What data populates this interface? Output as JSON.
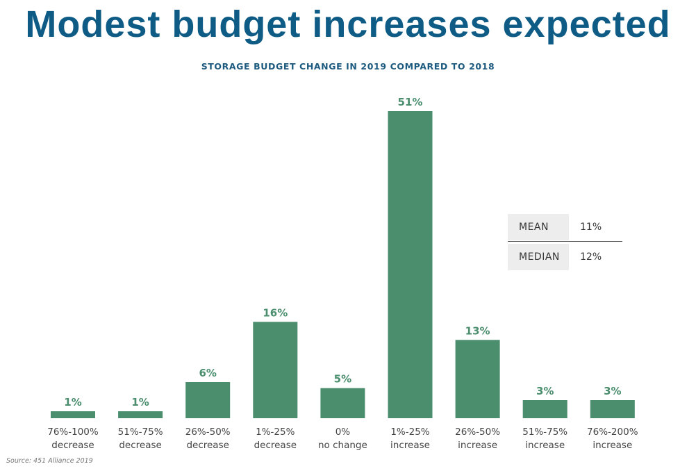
{
  "title": "Modest budget increases expected",
  "chart_data": {
    "type": "bar",
    "title": "STORAGE BUDGET CHANGE IN 2019 COMPARED TO 2018",
    "categories": [
      [
        "76%-100%",
        "decrease"
      ],
      [
        "51%-75%",
        "decrease"
      ],
      [
        "26%-50%",
        "decrease"
      ],
      [
        "1%-25%",
        "decrease"
      ],
      [
        "0%",
        "no change"
      ],
      [
        "1%-25%",
        "increase"
      ],
      [
        "26%-50%",
        "increase"
      ],
      [
        "51%-75%",
        "increase"
      ],
      [
        "76%-200%",
        "increase"
      ]
    ],
    "values": [
      1,
      1,
      6,
      16,
      5,
      51,
      13,
      3,
      3
    ],
    "value_labels": [
      "1%",
      "1%",
      "6%",
      "16%",
      "5%",
      "51%",
      "13%",
      "3%",
      "3%"
    ],
    "ylim": [
      0,
      51
    ],
    "bar_color": "#4b8e6e",
    "label_color": "#4b8e6e",
    "grid": false,
    "legend": "none"
  },
  "stats": {
    "mean_label": "MEAN",
    "mean_value": "11%",
    "median_label": "MEDIAN",
    "median_value": "12%"
  },
  "source": "Source: 451 Alliance 2019"
}
